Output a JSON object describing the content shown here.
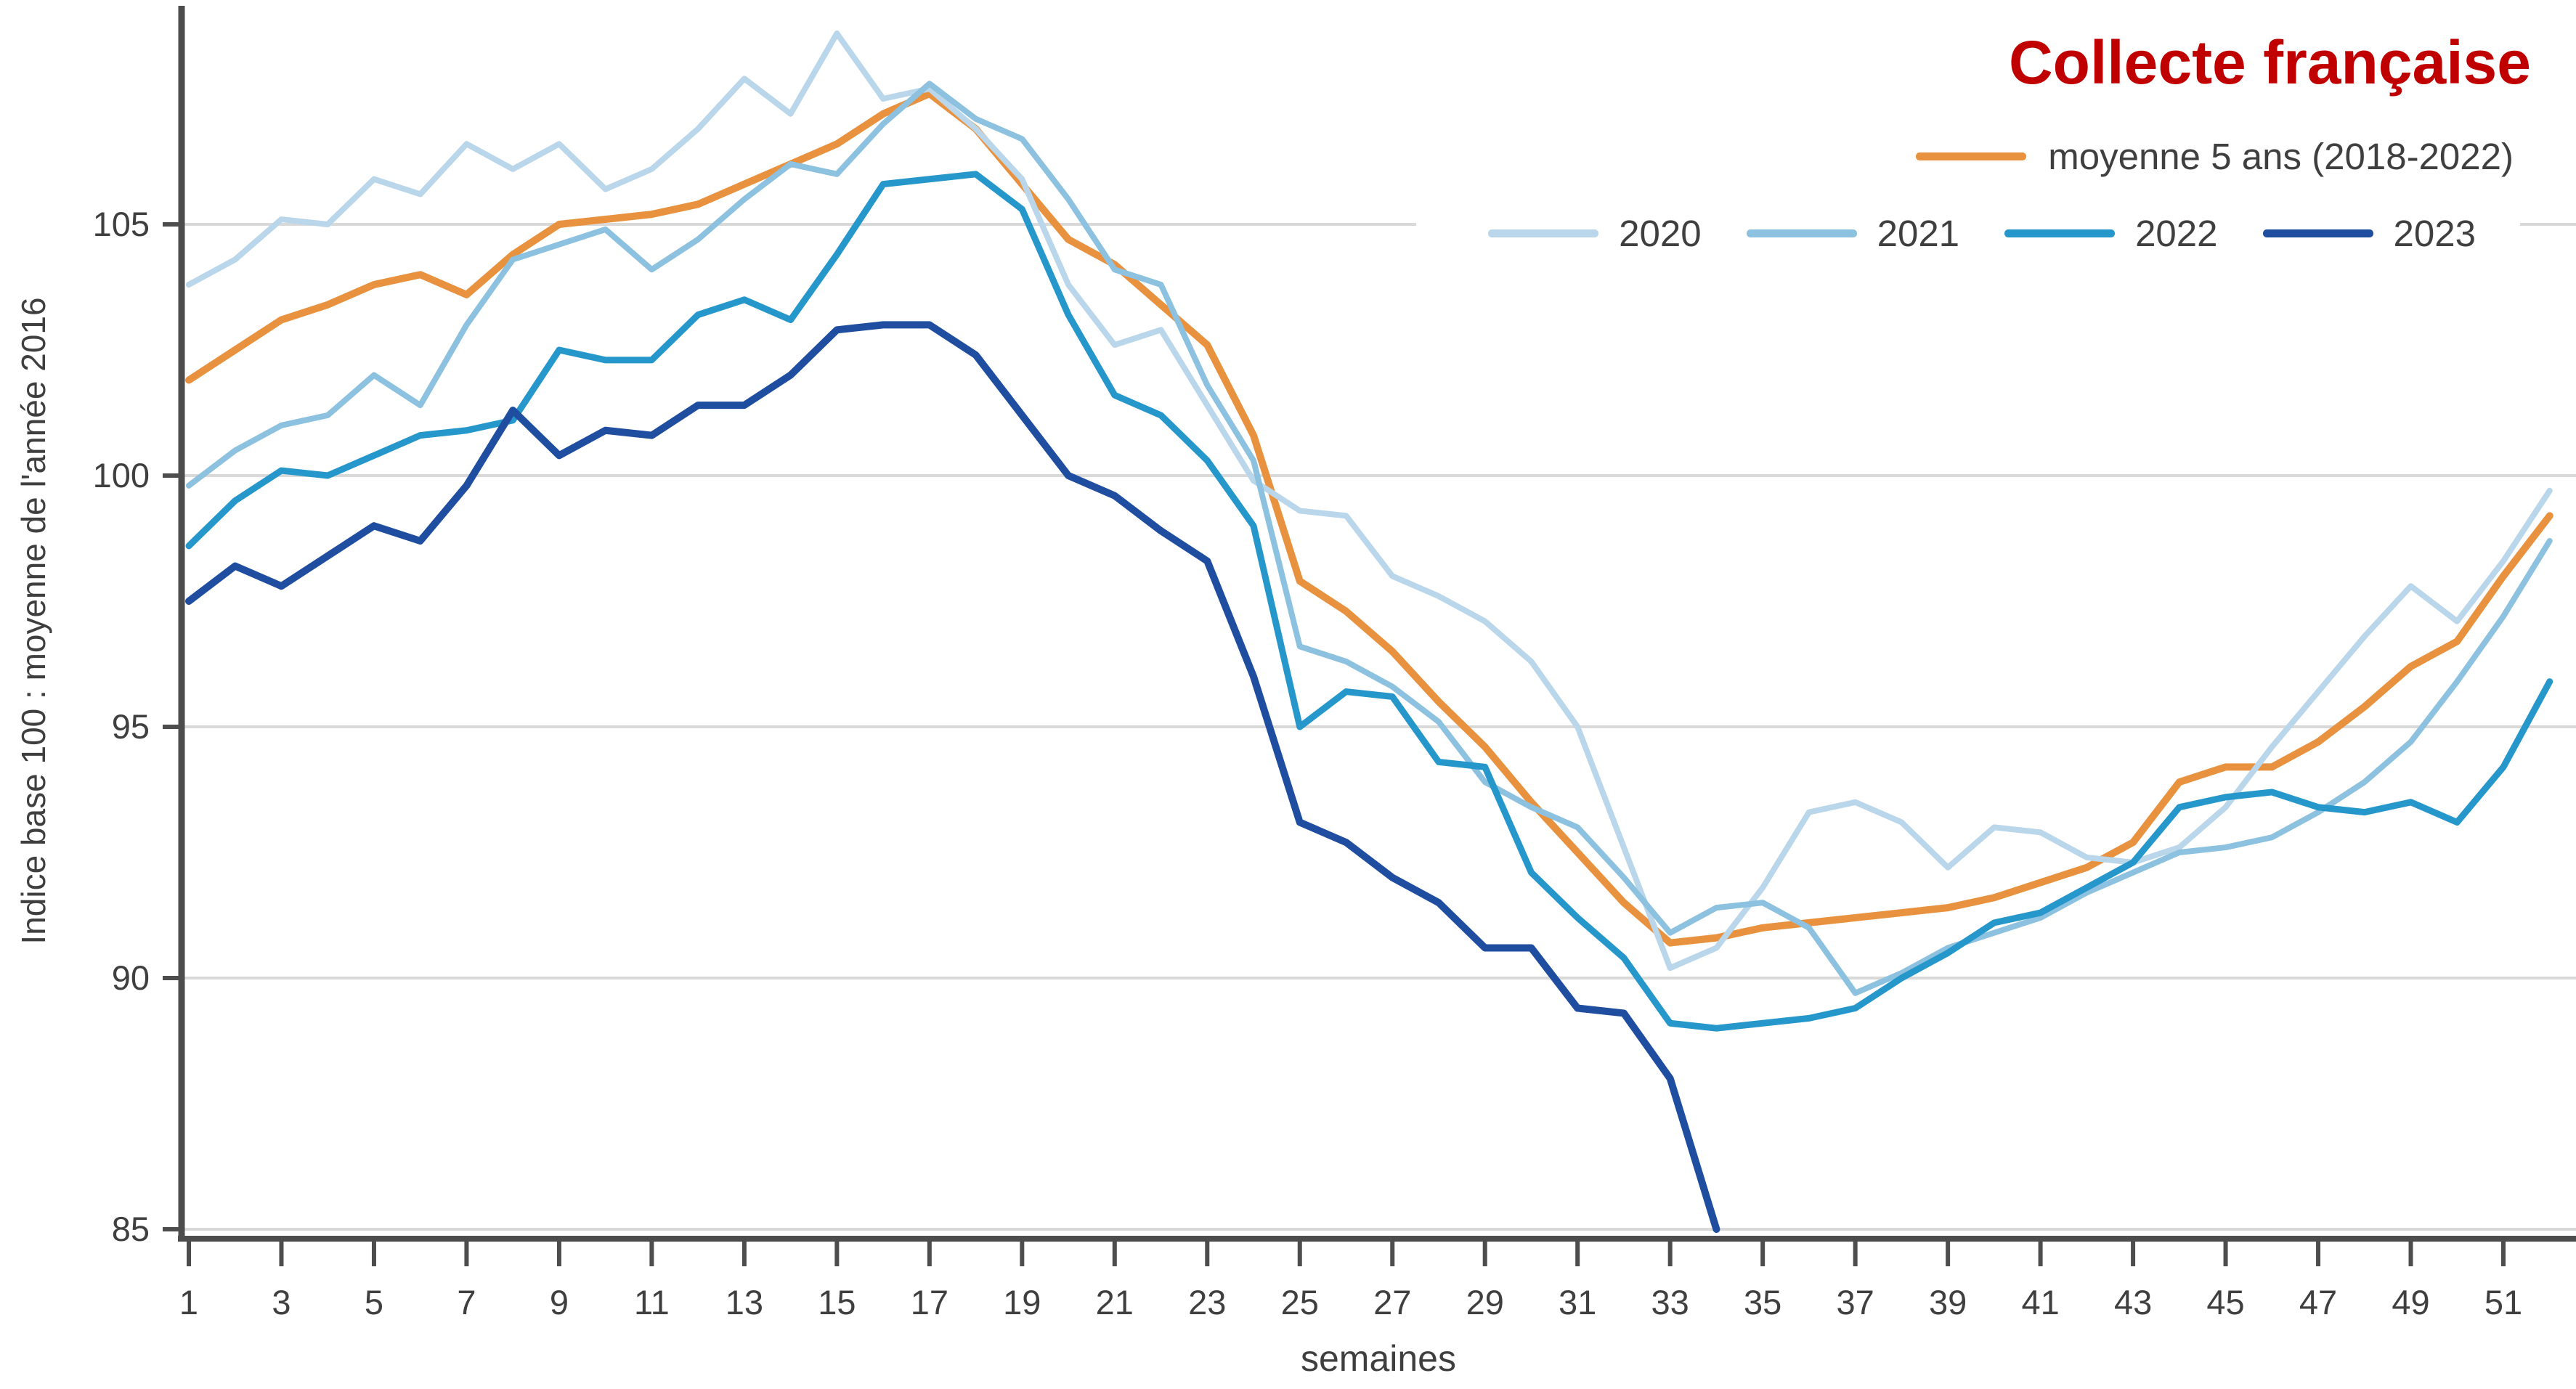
{
  "title": {
    "text": "Collecte française",
    "color": "#c00000"
  },
  "axes": {
    "y_title": "Indice base 100 : moyenne de l'année 2016",
    "x_title": "semaines",
    "y_ticks": [
      105,
      100,
      95,
      90,
      85
    ],
    "x_ticks": [
      1,
      3,
      5,
      7,
      9,
      11,
      13,
      15,
      17,
      19,
      21,
      23,
      25,
      27,
      29,
      31,
      33,
      35,
      37,
      39,
      41,
      43,
      45,
      47,
      49,
      51
    ]
  },
  "legend": {
    "row1_label": "moyenne 5 ans (2018-2022)",
    "year_labels": [
      "2020",
      "2021",
      "2022",
      "2023"
    ]
  },
  "colors": {
    "title_red": "#c00000",
    "text_grey": "#3f3f3f",
    "gridline": "#d9d9d9",
    "axis_line": "#4d4d4d"
  },
  "chart_data": {
    "type": "line",
    "title": "Collecte française",
    "xlabel": "semaines",
    "ylabel": "Indice base 100 : moyenne de l'année 2016",
    "xlim": [
      1,
      52
    ],
    "ylim": [
      84.5,
      109.5
    ],
    "grid": "horizontal",
    "legend_position": "top-right",
    "x": [
      1,
      2,
      3,
      4,
      5,
      6,
      7,
      8,
      9,
      10,
      11,
      12,
      13,
      14,
      15,
      16,
      17,
      18,
      19,
      20,
      21,
      22,
      23,
      24,
      25,
      26,
      27,
      28,
      29,
      30,
      31,
      32,
      33,
      34,
      35,
      36,
      37,
      38,
      39,
      40,
      41,
      42,
      43,
      44,
      45,
      46,
      47,
      48,
      49,
      50,
      51,
      52
    ],
    "series": [
      {
        "name": "moyenne 5 ans (2018-2022)",
        "color": "#e8923f",
        "stroke_width": 10,
        "values": [
          101.9,
          102.5,
          103.1,
          103.4,
          103.8,
          104.0,
          103.6,
          104.4,
          105.0,
          105.1,
          105.2,
          105.4,
          105.8,
          106.2,
          106.6,
          107.2,
          107.6,
          106.9,
          105.8,
          104.7,
          104.2,
          103.4,
          102.6,
          100.8,
          97.9,
          97.3,
          96.5,
          95.5,
          94.6,
          93.5,
          92.5,
          91.5,
          90.7,
          90.8,
          91.0,
          91.1,
          91.2,
          91.3,
          91.4,
          91.6,
          91.9,
          92.2,
          92.7,
          93.9,
          94.2,
          94.2,
          94.7,
          95.4,
          96.2,
          96.7,
          98.0,
          99.2
        ]
      },
      {
        "name": "2020",
        "color": "#b9d6ea",
        "stroke_width": 8,
        "values": [
          103.8,
          104.3,
          105.1,
          105.0,
          105.9,
          105.6,
          106.6,
          106.1,
          106.6,
          105.7,
          106.1,
          106.9,
          107.9,
          107.2,
          108.8,
          107.5,
          107.7,
          106.9,
          105.9,
          103.8,
          102.6,
          102.9,
          101.4,
          99.9,
          99.3,
          99.2,
          98.0,
          97.6,
          97.1,
          96.3,
          95.0,
          92.6,
          90.2,
          90.6,
          91.8,
          93.3,
          93.5,
          93.1,
          92.2,
          93.0,
          92.9,
          92.4,
          92.3,
          92.6,
          93.4,
          94.6,
          95.7,
          96.8,
          97.8,
          97.1,
          98.3,
          99.7
        ]
      },
      {
        "name": "2021",
        "color": "#8cc1e0",
        "stroke_width": 8,
        "values": [
          99.8,
          100.5,
          101.0,
          101.2,
          102.0,
          101.4,
          103.0,
          104.3,
          104.6,
          104.9,
          104.1,
          104.7,
          105.5,
          106.2,
          106.0,
          107.0,
          107.8,
          107.1,
          106.7,
          105.5,
          104.1,
          103.8,
          101.8,
          100.3,
          96.6,
          96.3,
          95.8,
          95.1,
          93.9,
          93.4,
          93.0,
          92.0,
          90.9,
          91.4,
          91.5,
          91.0,
          89.7,
          90.1,
          90.6,
          90.9,
          91.2,
          91.7,
          92.1,
          92.5,
          92.6,
          92.8,
          93.3,
          93.9,
          94.7,
          95.9,
          97.2,
          98.7
        ]
      },
      {
        "name": "2022",
        "color": "#2697cb",
        "stroke_width": 9,
        "values": [
          98.6,
          99.5,
          100.1,
          100.0,
          100.4,
          100.8,
          100.9,
          101.1,
          102.5,
          102.3,
          102.3,
          103.2,
          103.5,
          103.1,
          104.4,
          105.8,
          105.9,
          106.0,
          105.3,
          103.2,
          101.6,
          101.2,
          100.3,
          99.0,
          95.0,
          95.7,
          95.6,
          94.3,
          94.2,
          92.1,
          91.2,
          90.4,
          89.1,
          89.0,
          89.1,
          89.2,
          89.4,
          90.0,
          90.5,
          91.1,
          91.3,
          91.8,
          92.3,
          93.4,
          93.6,
          93.7,
          93.4,
          93.3,
          93.5,
          93.1,
          94.2,
          95.9
        ]
      },
      {
        "name": "2023",
        "color": "#1f4da0",
        "stroke_width": 10,
        "values": [
          97.5,
          98.2,
          97.8,
          98.4,
          99.0,
          98.7,
          99.8,
          101.3,
          100.4,
          100.9,
          100.8,
          101.4,
          101.4,
          102.0,
          102.9,
          103.0,
          103.0,
          102.4,
          101.2,
          100.0,
          99.6,
          98.9,
          98.3,
          96.0,
          93.1,
          92.7,
          92.0,
          91.5,
          90.6,
          90.6,
          89.4,
          89.3,
          88.0,
          85.0
        ]
      }
    ]
  }
}
